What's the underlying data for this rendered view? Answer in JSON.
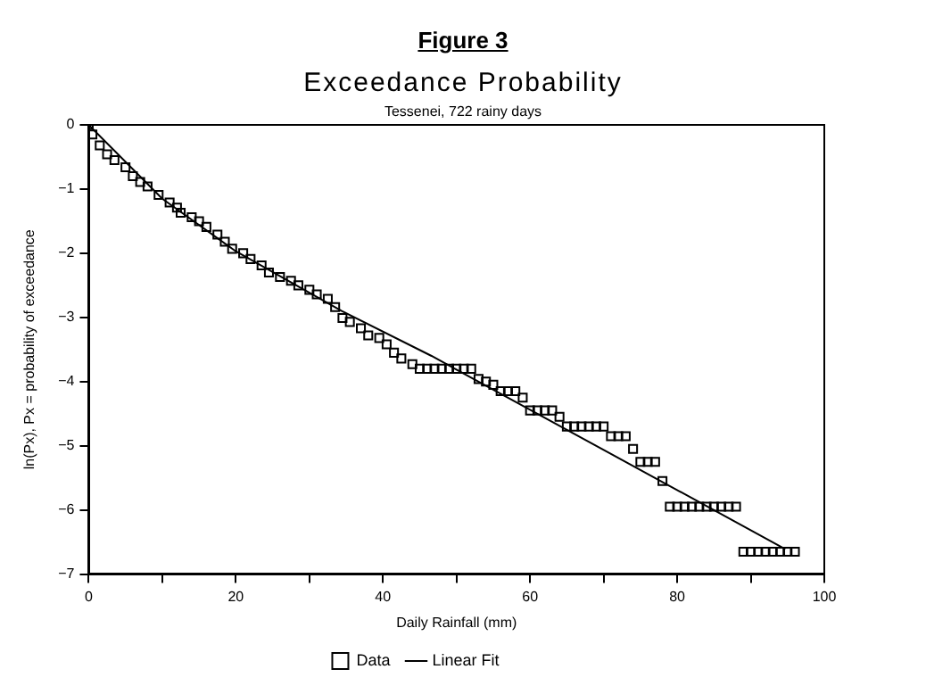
{
  "chart_data": {
    "type": "scatter",
    "title": "Figure 3",
    "subtitle": "Exceedance Probability",
    "annotations": [
      "Tessenei, 722 rainy days"
    ],
    "xlabel": "Daily Rainfall (mm)",
    "ylabel": "ln(Px), Px = probability of exceedance",
    "xlim": [
      0,
      100
    ],
    "xticks": [
      0,
      {
        "value": 10,
        "label": null
      },
      20,
      {
        "value": 30,
        "label": null
      },
      40,
      {
        "value": 50,
        "label": null
      },
      60,
      {
        "value": 70,
        "label": null
      },
      80,
      {
        "value": 90,
        "label": null
      },
      100
    ],
    "ylim": [
      -7,
      0
    ],
    "yticks": [
      0,
      -1,
      -2,
      -3,
      -4,
      -5,
      -6,
      -7
    ],
    "grid": false,
    "legend": "bottom",
    "marker": "square",
    "series": [
      {
        "name": "Data",
        "color": "#000000",
        "x": [
          0,
          0.5,
          1.5,
          2.5,
          3.5,
          5,
          6,
          7,
          8,
          9.5,
          11,
          12,
          12.5,
          14,
          15,
          16,
          17.5,
          18.5,
          19.5,
          21,
          22,
          23.5,
          24.5,
          26,
          27.5,
          28.5,
          30,
          31,
          32.5,
          33.5,
          34.5,
          35.5,
          37,
          38,
          39.5,
          40.5,
          41.5,
          42.5,
          44,
          45,
          46,
          47,
          48,
          49,
          50,
          51,
          52,
          53,
          54,
          55,
          56,
          57,
          58,
          59,
          60,
          61,
          62,
          63,
          64,
          65,
          66,
          67,
          68,
          69,
          70,
          71,
          72,
          73,
          74,
          75,
          76,
          77,
          78,
          79,
          80,
          81,
          82,
          83,
          84,
          85,
          86,
          87,
          88,
          89,
          90,
          91,
          92,
          93,
          94,
          95,
          96
        ],
        "values": [
          0,
          -0.15,
          -0.32,
          -0.46,
          -0.55,
          -0.66,
          -0.8,
          -0.89,
          -0.96,
          -1.09,
          -1.21,
          -1.29,
          -1.37,
          -1.44,
          -1.5,
          -1.59,
          -1.71,
          -1.82,
          -1.93,
          -2,
          -2.09,
          -2.19,
          -2.3,
          -2.37,
          -2.43,
          -2.5,
          -2.57,
          -2.64,
          -2.71,
          -2.84,
          -3.01,
          -3.07,
          -3.17,
          -3.28,
          -3.32,
          -3.42,
          -3.55,
          -3.64,
          -3.73,
          -3.8,
          -3.8,
          -3.8,
          -3.8,
          -3.8,
          -3.8,
          -3.8,
          -3.8,
          -3.96,
          -4,
          -4.05,
          -4.15,
          -4.15,
          -4.15,
          -4.25,
          -4.45,
          -4.45,
          -4.45,
          -4.45,
          -4.55,
          -4.7,
          -4.7,
          -4.7,
          -4.7,
          -4.7,
          -4.7,
          -4.85,
          -4.85,
          -4.85,
          -5.05,
          -5.25,
          -5.25,
          -5.25,
          -5.55,
          -5.95,
          -5.95,
          -5.95,
          -5.95,
          -5.95,
          -5.95,
          -5.95,
          -5.95,
          -5.95,
          -5.95,
          -6.65,
          -6.65,
          -6.65,
          -6.65,
          -6.65,
          -6.65,
          -6.65,
          -6.65
        ]
      },
      {
        "name": "Linear Fit",
        "type": "line",
        "color": "#000000",
        "marker": "none",
        "line_style": "solid",
        "x": [
          0,
          10,
          20,
          34.4,
          46.6,
          94.7
        ],
        "values": [
          0,
          -1.15,
          -1.97,
          -2.9,
          -3.6,
          -6.61
        ]
      }
    ]
  }
}
